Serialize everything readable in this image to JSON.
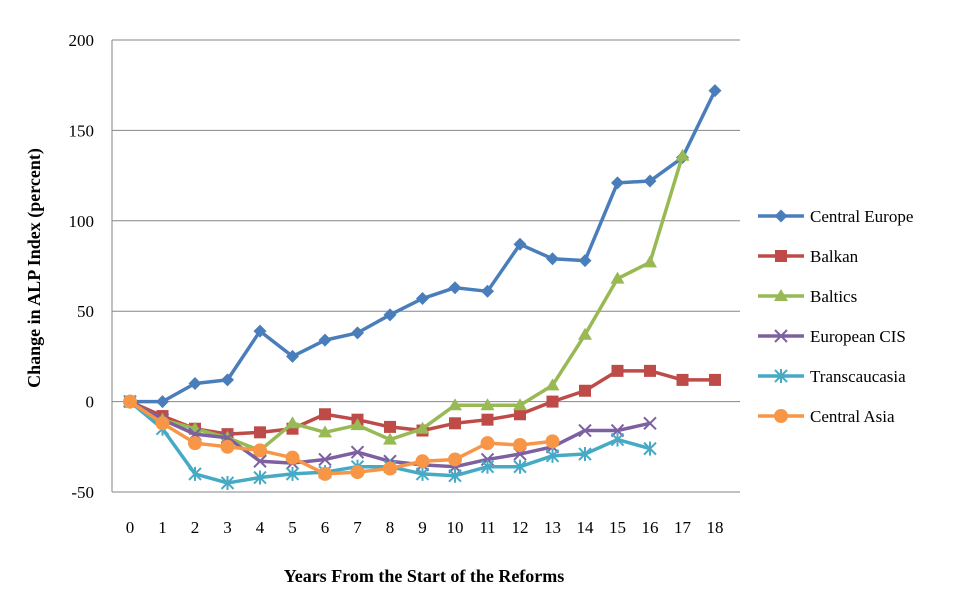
{
  "chart_data": {
    "type": "line",
    "title": "",
    "xlabel": "Years From the Start of the Reforms",
    "ylabel": "Change in ALP Index (percent)",
    "x": [
      0,
      1,
      2,
      3,
      4,
      5,
      6,
      7,
      8,
      9,
      10,
      11,
      12,
      13,
      14,
      15,
      16,
      17,
      18
    ],
    "xlim": [
      0,
      18
    ],
    "ylim": [
      -50,
      200
    ],
    "yticks": [
      -50,
      0,
      50,
      100,
      150,
      200
    ],
    "grid": "horizontal",
    "legend_position": "right",
    "series": [
      {
        "name": "Central Europe",
        "color": "#4a7ebb",
        "marker": "diamond",
        "values": [
          0,
          0,
          10,
          12,
          39,
          25,
          34,
          38,
          48,
          57,
          63,
          61,
          87,
          79,
          78,
          121,
          122,
          135,
          172
        ]
      },
      {
        "name": "Balkan",
        "color": "#be4b48",
        "marker": "square",
        "values": [
          0,
          -8,
          -15,
          -18,
          -17,
          -15,
          -7,
          -10,
          -14,
          -16,
          -12,
          -10,
          -7,
          0,
          6,
          17,
          17,
          12,
          12
        ]
      },
      {
        "name": "Baltics",
        "color": "#98b954",
        "marker": "triangle",
        "values": [
          0,
          -10,
          -15,
          -20,
          -27,
          -12,
          -17,
          -13,
          -21,
          -15,
          -2,
          -2,
          -2,
          9,
          37,
          68,
          77,
          136,
          null
        ]
      },
      {
        "name": "European CIS",
        "color": "#7d60a0",
        "marker": "x",
        "values": [
          0,
          -10,
          -18,
          -20,
          -33,
          -34,
          -32,
          -28,
          -33,
          -35,
          -36,
          -32,
          -29,
          -25,
          -16,
          -16,
          -12,
          null,
          null
        ]
      },
      {
        "name": "Transcaucasia",
        "color": "#46aac5",
        "marker": "asterisk",
        "values": [
          0,
          -15,
          -40,
          -45,
          -42,
          -40,
          -39,
          -36,
          -36,
          -40,
          -41,
          -36,
          -36,
          -30,
          -29,
          -21,
          -26,
          null,
          null
        ]
      },
      {
        "name": "Central Asia",
        "color": "#f79646",
        "marker": "circle",
        "values": [
          0,
          -12,
          -23,
          -25,
          -27,
          -31,
          -40,
          -39,
          -37,
          -33,
          -32,
          -23,
          -24,
          -22,
          null,
          null,
          null,
          null,
          null
        ]
      }
    ]
  }
}
